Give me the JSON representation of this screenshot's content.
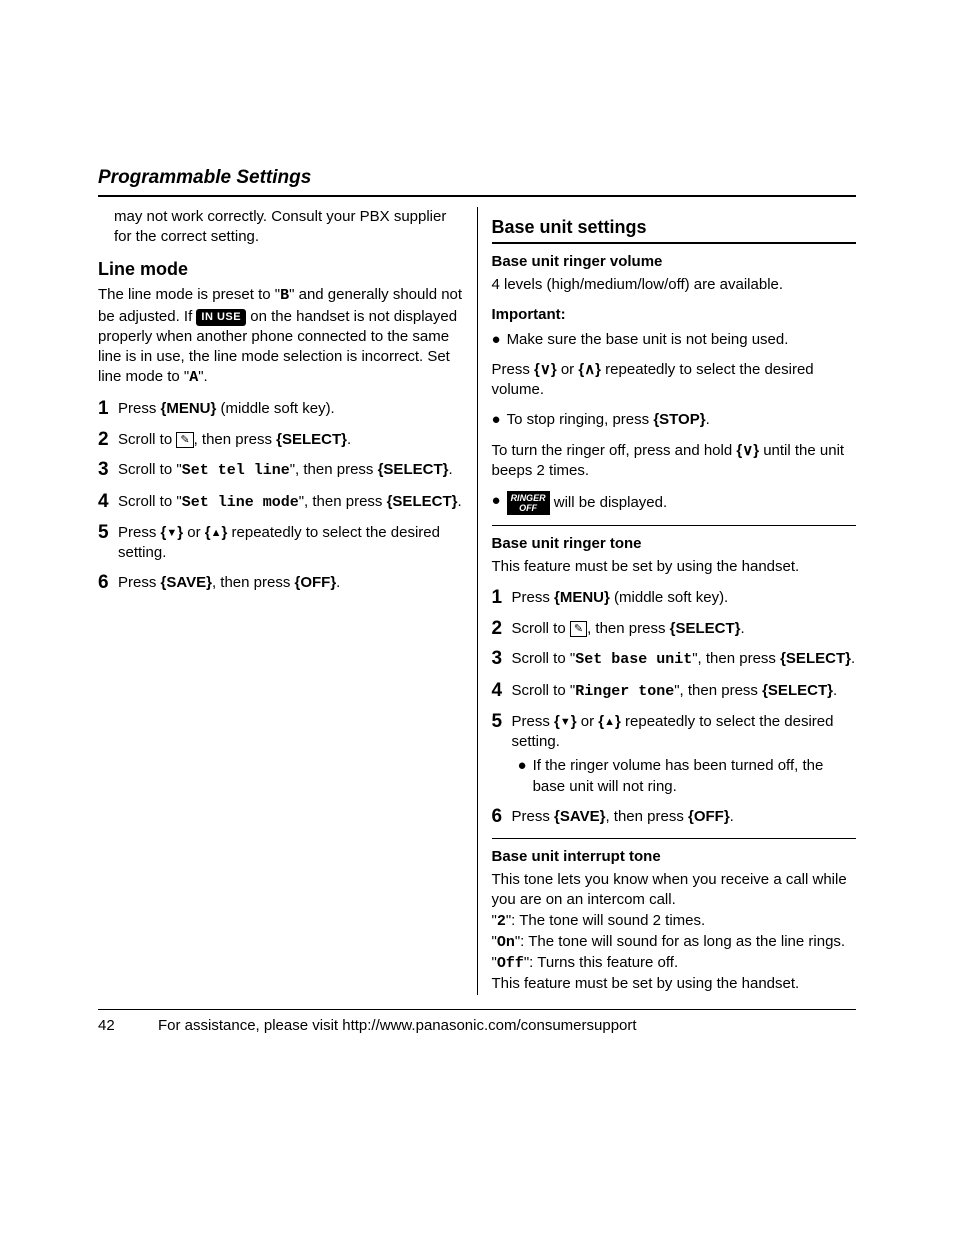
{
  "header": {
    "title": "Programmable Settings"
  },
  "left": {
    "continuation": "may not work correctly. Consult your PBX supplier for the correct setting.",
    "line_mode": {
      "heading": "Line mode",
      "intro_1": "The line mode is preset to \"",
      "preset_val": "B",
      "intro_2": "\" and generally should not be adjusted. If ",
      "inuse_label": "IN USE",
      "intro_3": " on the handset is not displayed properly when another phone connected to the same line is in use, the line mode selection is incorrect. Set line mode to \"",
      "target_val": "A",
      "intro_4": "\".",
      "steps": {
        "s1_a": "Press ",
        "s1_key": "{MENU}",
        "s1_b": " (middle soft key).",
        "s2_a": "Scroll to ",
        "s2_b": ", then press ",
        "s2_key": "{SELECT}",
        "s2_c": ".",
        "s3_a": "Scroll to \"",
        "s3_mono": "Set tel line",
        "s3_b": "\", then press ",
        "s3_key": "{SELECT}",
        "s3_c": ".",
        "s4_a": "Scroll to \"",
        "s4_mono": "Set line mode",
        "s4_b": "\", then press ",
        "s4_key": "{SELECT}",
        "s4_c": ".",
        "s5_a": "Press ",
        "s5_b": " or ",
        "s5_c": " repeatedly to select the desired setting.",
        "s6_a": "Press ",
        "s6_key1": "{SAVE}",
        "s6_b": ", then press ",
        "s6_key2": "{OFF}",
        "s6_c": "."
      }
    }
  },
  "right": {
    "base": {
      "heading": "Base unit settings",
      "ringer_vol": {
        "heading": "Base unit ringer volume",
        "text": "4 levels (high/medium/low/off) are available.",
        "important_label": "Important:",
        "important_bullet": "Make sure the base unit is not being used.",
        "press_a": "Press ",
        "press_b": " or ",
        "press_c": " repeatedly to select the desired volume.",
        "stop_a": "To stop ringing, press ",
        "stop_key": "{STOP}",
        "stop_b": ".",
        "off_a": "To turn the ringer off, press and hold ",
        "off_b": " until the unit beeps 2 times.",
        "ringer_icon_top": "RINGER",
        "ringer_icon_bot": "OFF",
        "disp": " will be displayed."
      },
      "ringer_tone": {
        "heading": "Base unit ringer tone",
        "text": "This feature must be set by using the handset.",
        "steps": {
          "s1_a": "Press ",
          "s1_key": "{MENU}",
          "s1_b": " (middle soft key).",
          "s2_a": "Scroll to ",
          "s2_b": ", then press ",
          "s2_key": "{SELECT}",
          "s2_c": ".",
          "s3_a": "Scroll to \"",
          "s3_mono": "Set base unit",
          "s3_b": "\", then press ",
          "s3_key": "{SELECT}",
          "s3_c": ".",
          "s4_a": "Scroll to \"",
          "s4_mono": "Ringer tone",
          "s4_b": "\", then press ",
          "s4_key": "{SELECT}",
          "s4_c": ".",
          "s5_a": "Press ",
          "s5_b": " or ",
          "s5_c": " repeatedly to select the desired setting.",
          "s5_bullet": "If the ringer volume has been turned off, the base unit will not ring.",
          "s6_a": "Press ",
          "s6_key1": "{SAVE}",
          "s6_b": ", then press ",
          "s6_key2": "{OFF}",
          "s6_c": "."
        }
      },
      "interrupt": {
        "heading": "Base unit interrupt tone",
        "l1": "This tone lets you know when you receive a call while you are on an intercom call.",
        "l2a": "\"",
        "l2m": "2",
        "l2b": "\": The tone will sound 2 times.",
        "l3a": "\"",
        "l3m": "On",
        "l3b": "\": The tone will sound for as long as the line rings.",
        "l4a": "\"",
        "l4m": "Off",
        "l4b": "\": Turns this feature off.",
        "l5": "This feature must be set by using the handset."
      }
    }
  },
  "footer": {
    "page": "42",
    "text": "For assistance, please visit http://www.panasonic.com/consumersupport"
  }
}
